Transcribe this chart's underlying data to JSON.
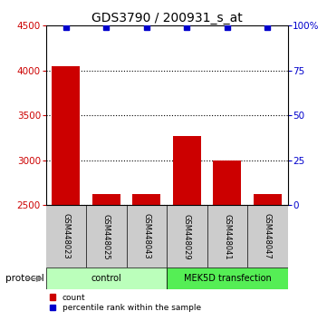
{
  "title": "GDS3790 / 200931_s_at",
  "samples": [
    "GSM448023",
    "GSM448025",
    "GSM448043",
    "GSM448029",
    "GSM448041",
    "GSM448047"
  ],
  "counts": [
    4050,
    2620,
    2620,
    3270,
    3000,
    2620
  ],
  "percentile_ranks": [
    99,
    99,
    99,
    99,
    99,
    99
  ],
  "ylim_left": [
    2500,
    4500
  ],
  "ylim_right": [
    0,
    100
  ],
  "yticks_left": [
    2500,
    3000,
    3500,
    4000,
    4500
  ],
  "yticks_right": [
    0,
    25,
    50,
    75,
    100
  ],
  "ytick_labels_right": [
    "0",
    "25",
    "50",
    "75",
    "100%"
  ],
  "bar_color": "#cc0000",
  "percentile_color": "#0000cc",
  "protocol_groups": [
    {
      "label": "control",
      "n_samples": 3,
      "color": "#bbffbb"
    },
    {
      "label": "MEK5D transfection",
      "n_samples": 3,
      "color": "#55ee55"
    }
  ],
  "protocol_label": "protocol",
  "legend_count_label": "count",
  "legend_percentile_label": "percentile rank within the sample",
  "title_fontsize": 10,
  "bar_width": 0.7,
  "gridline_color": "#000000",
  "background_color": "#ffffff",
  "label_bg_color": "#cccccc"
}
